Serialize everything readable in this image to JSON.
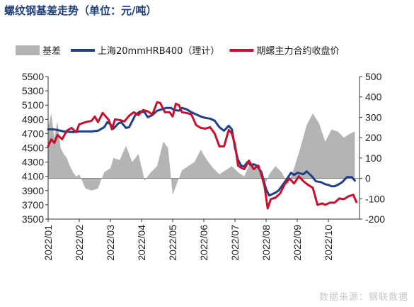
{
  "chart_data": {
    "type": "line",
    "title": "螺纹钢基差走势（单位：元/吨）",
    "source": "数据来源：钢联数据",
    "x_categories": [
      "2022/01",
      "2022/02",
      "2022/03",
      "2022/04",
      "2022/05",
      "2022/06",
      "2022/07",
      "2022/08",
      "2022/09",
      "2022/10"
    ],
    "y_left": {
      "min": 3500,
      "max": 5500,
      "ticks": [
        3500,
        3700,
        3900,
        4100,
        4300,
        4500,
        4700,
        4900,
        5100,
        5300,
        5500
      ]
    },
    "y_right": {
      "min": -200,
      "max": 500,
      "ticks": [
        -200,
        -100,
        0,
        100,
        200,
        300,
        400,
        500
      ]
    },
    "series": [
      {
        "name": "基差",
        "kind": "area",
        "axis": "right",
        "color": "#b4b4b4",
        "x": [
          0,
          0.1,
          0.2,
          0.3,
          0.4,
          0.5,
          0.6,
          0.7,
          0.8,
          0.9,
          1.0,
          1.2,
          1.4,
          1.6,
          1.8,
          2.0,
          2.1,
          2.3,
          2.5,
          2.7,
          2.9,
          3.1,
          3.3,
          3.5,
          3.7,
          3.85,
          4.0,
          4.15,
          4.3,
          4.5,
          4.7,
          4.9,
          5.1,
          5.3,
          5.5,
          5.7,
          5.9,
          6.1,
          6.3,
          6.5,
          6.7,
          6.85,
          7.0,
          7.1,
          7.3,
          7.5,
          7.7,
          7.9,
          8.1,
          8.3,
          8.5,
          8.7,
          8.9,
          9.1,
          9.3,
          9.5,
          9.7,
          9.85
        ],
        "values": [
          250,
          320,
          200,
          280,
          150,
          120,
          100,
          60,
          30,
          10,
          20,
          -50,
          -60,
          -50,
          30,
          50,
          100,
          90,
          160,
          80,
          120,
          -10,
          30,
          60,
          180,
          150,
          -80,
          -20,
          40,
          60,
          80,
          140,
          90,
          50,
          20,
          40,
          60,
          30,
          10,
          80,
          50,
          30,
          -20,
          20,
          60,
          30,
          -30,
          50,
          150,
          260,
          320,
          270,
          180,
          240,
          230,
          200,
          220,
          230
        ]
      },
      {
        "name": "上海20mmHRB400（理计）",
        "kind": "line",
        "axis": "left",
        "color": "#1f3f8a",
        "x": [
          0,
          0.15,
          0.3,
          0.5,
          0.8,
          1.0,
          1.2,
          1.4,
          1.6,
          1.8,
          1.9,
          2.0,
          2.1,
          2.25,
          2.35,
          2.5,
          2.6,
          2.8,
          2.95,
          3.1,
          3.2,
          3.35,
          3.5,
          3.65,
          3.8,
          3.95,
          4.05,
          4.2,
          4.3,
          4.45,
          4.6,
          4.75,
          4.9,
          5.05,
          5.2,
          5.35,
          5.5,
          5.65,
          5.8,
          5.9,
          6.0,
          6.1,
          6.2,
          6.3,
          6.4,
          6.5,
          6.6,
          6.7,
          6.85,
          7.0,
          7.1,
          7.2,
          7.3,
          7.4,
          7.5,
          7.65,
          7.8,
          7.9,
          8.0,
          8.1,
          8.2,
          8.3,
          8.45,
          8.6,
          8.75,
          8.9,
          9.0,
          9.1,
          9.2,
          9.3,
          9.45,
          9.6,
          9.75,
          9.85
        ],
        "values": [
          4760,
          4760,
          4750,
          4730,
          4720,
          4730,
          4730,
          4730,
          4740,
          4790,
          4860,
          4830,
          4770,
          4840,
          4860,
          4780,
          4790,
          4960,
          5010,
          5000,
          4930,
          4960,
          5020,
          5040,
          5060,
          5060,
          5030,
          5020,
          5060,
          5040,
          5000,
          4970,
          4940,
          4920,
          4910,
          4880,
          4790,
          4740,
          4810,
          4760,
          4500,
          4330,
          4250,
          4240,
          4300,
          4260,
          4270,
          4250,
          4160,
          3920,
          3830,
          3850,
          3870,
          3900,
          3960,
          4050,
          4150,
          4120,
          4150,
          4140,
          4130,
          4170,
          4110,
          4030,
          4020,
          3990,
          3980,
          3960,
          3960,
          3980,
          4020,
          4090,
          4090,
          4040
        ]
      },
      {
        "name": "期螺主力合约收盘价",
        "kind": "line",
        "axis": "left",
        "color": "#c8102e",
        "x": [
          0,
          0.1,
          0.2,
          0.3,
          0.45,
          0.6,
          0.75,
          0.9,
          1.0,
          1.2,
          1.4,
          1.5,
          1.6,
          1.75,
          1.85,
          1.95,
          2.05,
          2.15,
          2.3,
          2.45,
          2.6,
          2.75,
          2.9,
          3.05,
          3.2,
          3.35,
          3.5,
          3.6,
          3.75,
          3.9,
          4.0,
          4.1,
          4.2,
          4.3,
          4.45,
          4.6,
          4.75,
          4.9,
          5.05,
          5.2,
          5.35,
          5.5,
          5.65,
          5.8,
          5.9,
          6.0,
          6.1,
          6.2,
          6.3,
          6.45,
          6.6,
          6.75,
          6.85,
          6.95,
          7.05,
          7.15,
          7.3,
          7.45,
          7.6,
          7.75,
          7.9,
          8.05,
          8.2,
          8.35,
          8.5,
          8.65,
          8.8,
          8.9,
          9.05,
          9.2,
          9.35,
          9.5,
          9.65,
          9.8,
          9.9
        ],
        "values": [
          4520,
          4620,
          4570,
          4680,
          4620,
          4740,
          4780,
          4720,
          4830,
          4860,
          4880,
          4940,
          4860,
          4990,
          4940,
          4890,
          4760,
          4900,
          4890,
          4870,
          4950,
          5000,
          4960,
          5030,
          5010,
          4970,
          5140,
          5130,
          5000,
          5000,
          4940,
          5120,
          5100,
          5000,
          4990,
          4970,
          4820,
          4780,
          4770,
          4790,
          4700,
          4520,
          4520,
          4750,
          4700,
          4550,
          4250,
          4220,
          4200,
          4320,
          4200,
          4250,
          4120,
          3960,
          3650,
          3780,
          3800,
          3860,
          3990,
          4070,
          4000,
          4100,
          4030,
          3980,
          3940,
          3700,
          3720,
          3700,
          3730,
          3730,
          3790,
          3780,
          3820,
          3840,
          3740
        ]
      }
    ]
  }
}
